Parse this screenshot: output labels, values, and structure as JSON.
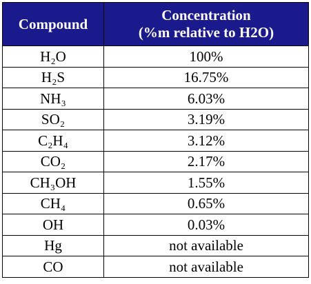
{
  "table": {
    "header": [
      "Compound",
      [
        "Concentration",
        "(%m relative to H2O)"
      ]
    ],
    "rows": [
      [
        "H₂O",
        "100%"
      ],
      [
        "H₂S",
        "16.75%"
      ],
      [
        "NH₃",
        "6.03%"
      ],
      [
        "SO₂",
        "3.19%"
      ],
      [
        "C₂H₄",
        "3.12%"
      ],
      [
        "CO₂",
        "2.17%"
      ],
      [
        "CH₃OH",
        "1.55%"
      ],
      [
        "CH₄",
        "0.65%"
      ],
      [
        "OH",
        "0.03%"
      ],
      [
        "Hg",
        "not available"
      ],
      [
        "CO",
        "not available"
      ]
    ]
  }
}
